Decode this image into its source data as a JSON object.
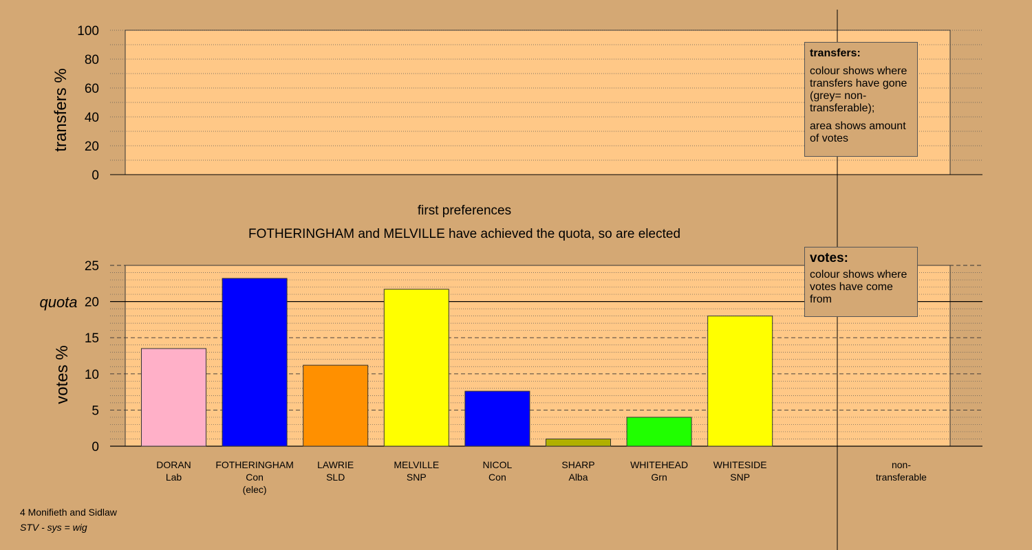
{
  "transfers_panel": {
    "ylabel": "transfers %",
    "yticks": [
      "0",
      "20",
      "40",
      "60",
      "80",
      "100"
    ],
    "ylim": [
      0,
      100
    ]
  },
  "stage_heading": "first preferences",
  "result_message": "FOTHERINGHAM and MELVILLE have achieved the quota, so are elected",
  "legends": {
    "transfers": {
      "title": "transfers:",
      "line1": "colour shows where transfers have gone (grey= non-transferable);",
      "line2": "area shows amount of votes"
    },
    "votes": {
      "title": "votes:",
      "line1": "colour shows where votes have come from"
    }
  },
  "footer": {
    "ward": "4 Monifieth and Sidlaw",
    "system": "STV - sys = wig"
  },
  "chart_data": {
    "type": "bar",
    "ylabel": "votes %",
    "quota_label": "quota",
    "quota": 20,
    "ylim": [
      0,
      25
    ],
    "yticks": [
      "0",
      "5",
      "10",
      "15",
      "20",
      "25"
    ],
    "grid": true,
    "candidates": [
      {
        "name": "DORAN",
        "party": "Lab",
        "note": "",
        "value": 13.5,
        "color": "#ffb0c8"
      },
      {
        "name": "FOTHERINGHAM",
        "party": "Con",
        "note": "(elec)",
        "value": 23.2,
        "color": "#0000ff"
      },
      {
        "name": "LAWRIE",
        "party": "SLD",
        "note": "",
        "value": 11.2,
        "color": "#ff9000"
      },
      {
        "name": "MELVILLE",
        "party": "SNP",
        "note": "",
        "value": 21.7,
        "color": "#ffff00"
      },
      {
        "name": "NICOL",
        "party": "Con",
        "note": "",
        "value": 7.6,
        "color": "#0000ff"
      },
      {
        "name": "SHARP",
        "party": "Alba",
        "note": "",
        "value": 1.0,
        "color": "#b0b000"
      },
      {
        "name": "WHITEHEAD",
        "party": "Grn",
        "note": "",
        "value": 4.0,
        "color": "#20ff00"
      },
      {
        "name": "WHITESIDE",
        "party": "SNP",
        "note": "",
        "value": 18.0,
        "color": "#ffff00"
      }
    ],
    "nontransferable_label": [
      "non-",
      "transferable"
    ]
  },
  "colors": {
    "background": "#d4a874",
    "plot_area": "#ffc887"
  }
}
